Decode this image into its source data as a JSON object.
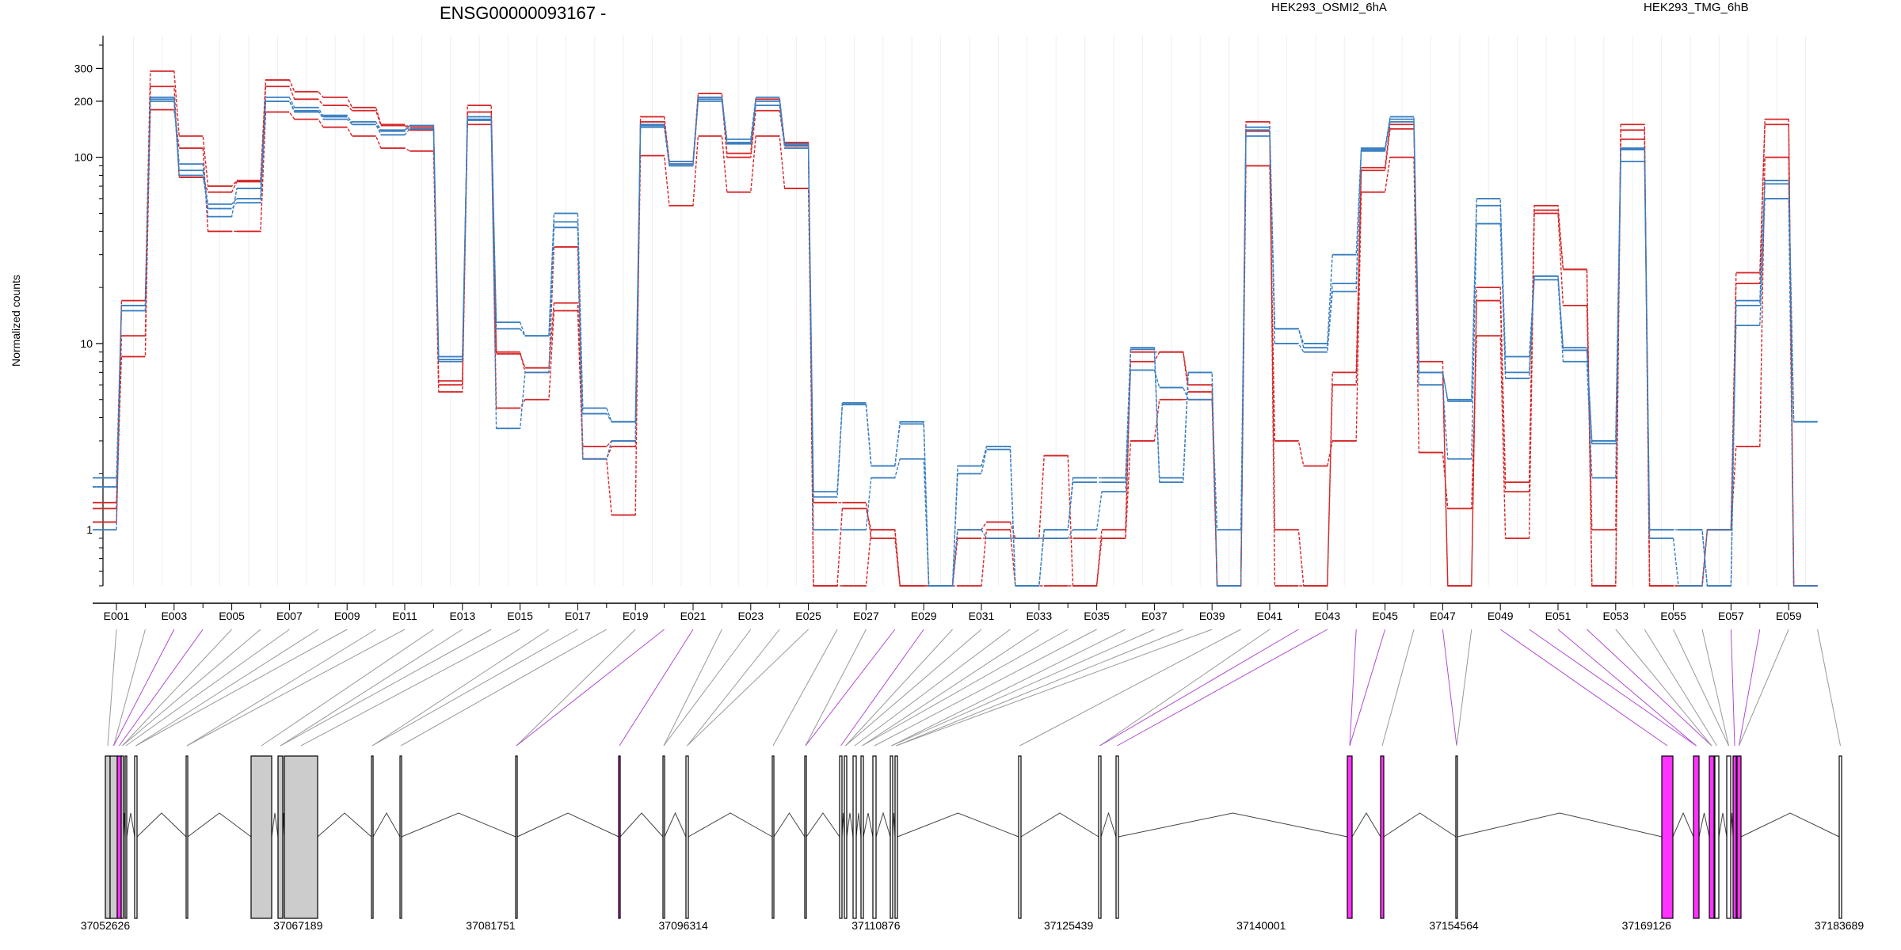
{
  "figure": {
    "title": "ENSG00000093167 -",
    "legend": [
      {
        "label": "HEK293_OSMI2_6hA",
        "color": "#d62728"
      },
      {
        "label": "HEK293_TMG_6hB",
        "color": "#3a7fc0"
      }
    ]
  },
  "chart_data": {
    "type": "line",
    "title": "ENSG00000093167 -",
    "ylabel": "Normalized counts",
    "xlabel": "",
    "y_scale": "log",
    "ylim": [
      0.5,
      450
    ],
    "y_ticks": [
      1,
      10,
      100,
      200,
      300
    ],
    "grid": "vertical gridlines per exon",
    "legend_position": "top",
    "exons": [
      "E001",
      "E002",
      "E003",
      "E004",
      "E005",
      "E006",
      "E007",
      "E008",
      "E009",
      "E010",
      "E011",
      "E012",
      "E013",
      "E014",
      "E015",
      "E016",
      "E017",
      "E018",
      "E019",
      "E020",
      "E021",
      "E022",
      "E023",
      "E024",
      "E025",
      "E026",
      "E027",
      "E028",
      "E029",
      "E030",
      "E031",
      "E032",
      "E033",
      "E034",
      "E035",
      "E036",
      "E037",
      "E038",
      "E039",
      "E040",
      "E041",
      "E042",
      "E043",
      "E044",
      "E045",
      "E046",
      "E047",
      "E048",
      "E049",
      "E050",
      "E051",
      "E052",
      "E053",
      "E054",
      "E055",
      "E056",
      "E057",
      "E058",
      "E059",
      "E060"
    ],
    "x_tick_labels": [
      "E001",
      "E003",
      "E005",
      "E007",
      "E009",
      "E011",
      "E013",
      "E015",
      "E017",
      "E019",
      "E021",
      "E023",
      "E025",
      "E027",
      "E029",
      "E031",
      "E033",
      "E035",
      "E037",
      "E039",
      "E041",
      "E043",
      "E045",
      "E047",
      "E049",
      "E051",
      "E053",
      "E055",
      "E057",
      "E059"
    ],
    "series": [
      {
        "name": "HEK293_OSMI2_6hA",
        "group": "OSMI2",
        "color": "#d62728",
        "values": [
          1.3,
          17,
          290,
          130,
          70,
          75,
          260,
          225,
          210,
          185,
          150,
          145,
          6,
          190,
          9,
          7,
          33,
          2.4,
          1.2,
          165,
          95,
          220,
          105,
          205,
          120,
          0.5,
          0.5,
          1.0,
          0.5,
          0.5,
          1.0,
          1.1,
          0.9,
          0.9,
          0.9,
          0.9,
          9,
          9,
          6,
          0.5,
          155,
          0.5,
          0.5,
          7,
          88,
          150,
          8,
          0.5,
          20,
          1.8,
          55,
          25,
          0.5,
          150,
          0.5,
          0.5,
          1.0,
          24,
          160,
          0.5
        ]
      },
      {
        "name": "",
        "group": "OSMI2",
        "color": "#d62728",
        "values": [
          1.1,
          11,
          180,
          112,
          40,
          40,
          175,
          160,
          145,
          130,
          112,
          108,
          5.5,
          150,
          4.5,
          5,
          15,
          2.4,
          2.8,
          102,
          55,
          130,
          65,
          130,
          68,
          1.4,
          1.4,
          0.9,
          0.5,
          0.5,
          0.9,
          0.9,
          0.9,
          2.5,
          0.5,
          0.9,
          3,
          5,
          5,
          0.5,
          90,
          3,
          2.2,
          3,
          65,
          100,
          2.6,
          1.3,
          11,
          0.9,
          50,
          16,
          1.0,
          125,
          0.5,
          0.5,
          1.0,
          2.8,
          100,
          0.5
        ]
      },
      {
        "name": "",
        "group": "OSMI2",
        "color": "#d62728",
        "values": [
          1.4,
          8.5,
          240,
          78,
          65,
          74,
          240,
          205,
          190,
          178,
          148,
          140,
          6.3,
          175,
          8.8,
          7.4,
          16.5,
          2.8,
          3.0,
          155,
          92,
          210,
          100,
          178,
          115,
          0.5,
          1.3,
          1.0,
          0.5,
          0.5,
          0.5,
          1.0,
          0.5,
          0.5,
          0.5,
          1.0,
          8,
          9,
          5.5,
          0.5,
          138,
          1.0,
          0.5,
          6,
          85,
          142,
          7,
          0.5,
          17,
          1.6,
          52,
          25,
          0.5,
          140,
          0.5,
          0.5,
          1.0,
          21,
          150,
          0.5
        ]
      },
      {
        "name": "HEK293_TMG_6hB",
        "group": "TMG",
        "color": "#3a7fc0",
        "values": [
          1.9,
          16,
          200,
          85,
          56,
          60,
          210,
          185,
          165,
          155,
          140,
          148,
          8.5,
          165,
          13,
          11,
          50,
          4.5,
          3.8,
          150,
          95,
          210,
          125,
          210,
          118,
          1.6,
          4.8,
          2.2,
          3.8,
          0.5,
          2.2,
          2.8,
          0.5,
          1.0,
          1.9,
          1.9,
          9.5,
          1.9,
          7,
          0.5,
          145,
          12,
          10,
          30,
          112,
          165,
          7,
          5,
          60,
          7,
          23,
          9.5,
          3.0,
          112,
          1.0,
          1.0,
          0.5,
          17,
          75,
          3.8
        ]
      },
      {
        "name": "",
        "group": "TMG",
        "color": "#3a7fc0",
        "values": [
          1.0,
          16,
          210,
          92,
          48,
          68,
          200,
          175,
          168,
          150,
          138,
          148,
          8.2,
          160,
          12,
          11,
          45,
          4.2,
          3.8,
          145,
          90,
          200,
          118,
          200,
          112,
          1.5,
          4.7,
          2.2,
          3.7,
          0.5,
          2.0,
          2.7,
          0.5,
          1.0,
          1.8,
          1.8,
          9.3,
          1.8,
          7,
          0.5,
          140,
          12,
          9.5,
          21,
          110,
          160,
          7,
          4.9,
          55,
          8.5,
          23,
          9.2,
          2.9,
          110,
          1.0,
          1.0,
          0.5,
          16,
          72,
          3.8
        ]
      },
      {
        "name": "",
        "group": "TMG",
        "color": "#3a7fc0",
        "values": [
          1.7,
          15,
          205,
          80,
          53,
          57,
          200,
          178,
          160,
          150,
          132,
          142,
          8.0,
          158,
          3.5,
          7,
          42,
          2.4,
          3.0,
          148,
          92,
          205,
          120,
          190,
          116,
          1.0,
          1.0,
          1.9,
          2.4,
          0.5,
          1.0,
          0.9,
          0.9,
          0.9,
          1.0,
          1.6,
          7.2,
          5.8,
          5,
          1.0,
          130,
          10,
          9,
          19,
          108,
          155,
          6,
          2.4,
          44,
          6.5,
          22,
          8,
          1.9,
          95,
          0.9,
          0.5,
          1.0,
          12.5,
          60,
          0.5
        ]
      }
    ]
  },
  "gene_model": {
    "genomic_ticks": [
      "37052626",
      "37067189",
      "37081751",
      "37096314",
      "37110876",
      "37125439",
      "37140001",
      "37154564",
      "37169126",
      "37183689"
    ]
  }
}
